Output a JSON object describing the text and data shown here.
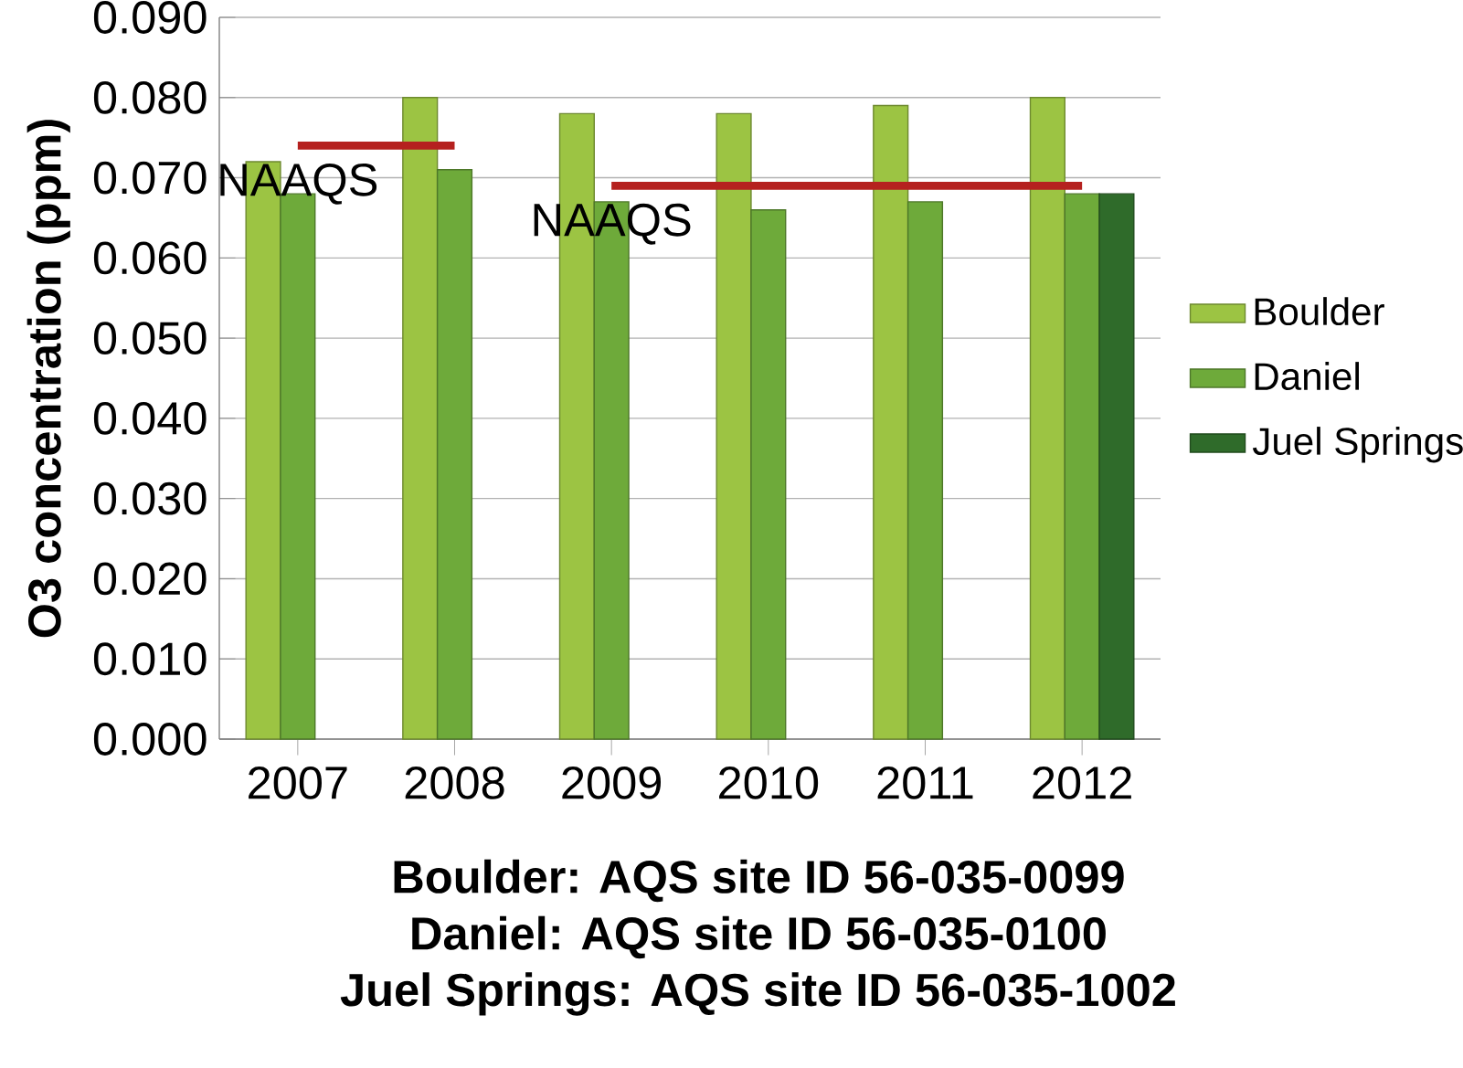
{
  "chart_data": {
    "type": "bar",
    "ylabel": "O3 concentration (ppm)",
    "categories": [
      "2007",
      "2008",
      "2009",
      "2010",
      "2011",
      "2012"
    ],
    "series": [
      {
        "name": "Boulder",
        "color": "#9cc443",
        "values": [
          0.072,
          0.08,
          0.078,
          0.078,
          0.079,
          0.08
        ]
      },
      {
        "name": "Daniel",
        "color": "#6eaa3a",
        "values": [
          0.068,
          0.071,
          0.067,
          0.066,
          0.067,
          0.068
        ]
      },
      {
        "name": "Juel Springs",
        "color": "#2f6b2a",
        "values": [
          null,
          null,
          null,
          null,
          null,
          0.068
        ]
      },
      {
        "type": "line",
        "color": "#b5211f",
        "values": [
          0.074,
          0.074,
          null,
          null,
          null,
          null
        ]
      },
      {
        "type": "line",
        "color": "#b5211f",
        "values": [
          null,
          null,
          0.069,
          0.069,
          0.069,
          0.069
        ]
      }
    ],
    "ylim": [
      0,
      0.09
    ],
    "yticks": [
      {
        "value": 0,
        "label": "0.000"
      },
      {
        "value": 0.01,
        "label": "0.010"
      },
      {
        "value": 0.02,
        "label": "0.020"
      },
      {
        "value": 0.03,
        "label": "0.030"
      },
      {
        "value": 0.04,
        "label": "0.040"
      },
      {
        "value": 0.05,
        "label": "0.050"
      },
      {
        "value": 0.06,
        "label": "0.060"
      },
      {
        "value": 0.07,
        "label": "0.070"
      },
      {
        "value": 0.08,
        "label": "0.080"
      },
      {
        "value": 0.09,
        "label": "0.090"
      }
    ],
    "grid": "y",
    "legend": "right",
    "marker": "none",
    "annotations": [
      {
        "text": "NAAQS",
        "x": "2007",
        "y": 0.074
      },
      {
        "text": "NAAQS",
        "x": "2009",
        "y": 0.069
      },
      "Boulder:  AQS site ID 56-035-0099",
      "Daniel:  AQS site ID 56-035-0100",
      "Juel Springs:  AQS site ID 56-035-1002"
    ]
  }
}
